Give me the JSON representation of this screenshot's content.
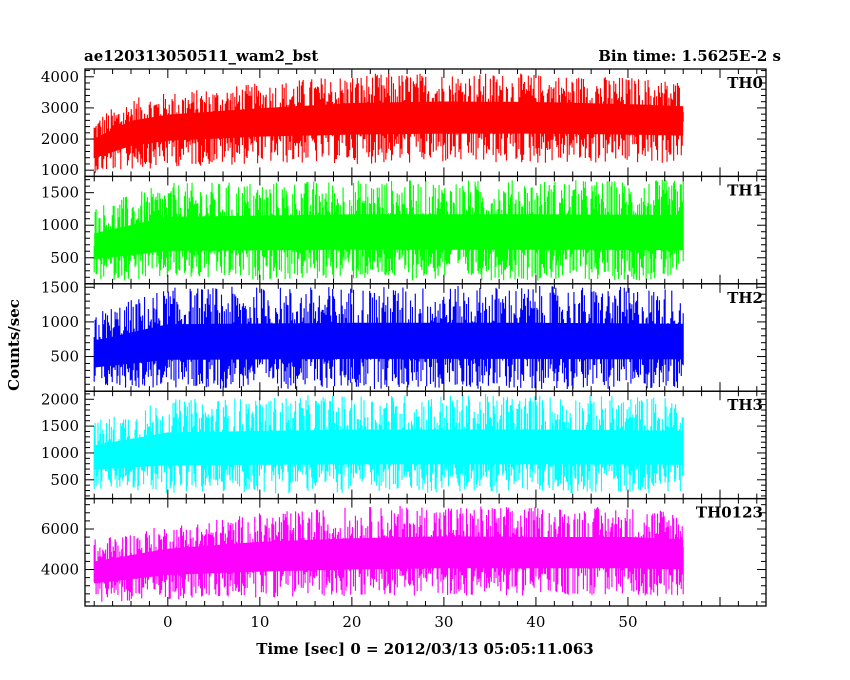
{
  "chart_data": {
    "type": "line",
    "title": "ae120313050511_wam2_bst",
    "subtitle": "Bin time: 1.5625E-2 s",
    "xlabel": "Time [sec] 0 = 2012/03/13 05:05:11.063",
    "ylabel": "Counts/sec",
    "xlim": [
      -9,
      65
    ],
    "x_ticks": [
      0,
      10,
      20,
      30,
      40,
      50
    ],
    "x_tick_labels": [
      "0",
      "10",
      "20",
      "30",
      "40",
      "50"
    ],
    "data_range": [
      -8,
      56
    ],
    "panels": [
      {
        "name": "TH0",
        "color": "#ff0000",
        "ylim": [
          800,
          4250
        ],
        "y_ticks": [
          1000,
          2000,
          3000,
          4000
        ],
        "y_tick_labels": [
          "1000",
          "2000",
          "3000",
          "4000"
        ],
        "envelope": [
          {
            "x": -8,
            "min": 900,
            "mean": 1650,
            "max": 2700
          },
          {
            "x": -4,
            "min": 1000,
            "mean": 2200,
            "max": 3300
          },
          {
            "x": 0,
            "min": 1100,
            "mean": 2400,
            "max": 3500
          },
          {
            "x": 10,
            "min": 1200,
            "mean": 2550,
            "max": 3800
          },
          {
            "x": 20,
            "min": 1200,
            "mean": 2650,
            "max": 4100
          },
          {
            "x": 30,
            "min": 1200,
            "mean": 2700,
            "max": 4150
          },
          {
            "x": 40,
            "min": 1200,
            "mean": 2700,
            "max": 4100
          },
          {
            "x": 50,
            "min": 1200,
            "mean": 2650,
            "max": 4000
          },
          {
            "x": 56,
            "min": 1200,
            "mean": 2600,
            "max": 3900
          }
        ]
      },
      {
        "name": "TH1",
        "color": "#00ff00",
        "ylim": [
          100,
          1750
        ],
        "y_ticks": [
          500,
          1000,
          1500
        ],
        "y_tick_labels": [
          "500",
          "1000",
          "1500"
        ],
        "envelope": [
          {
            "x": -8,
            "min": 150,
            "mean": 650,
            "max": 1300
          },
          {
            "x": 0,
            "min": 150,
            "mean": 850,
            "max": 1650
          },
          {
            "x": 20,
            "min": 150,
            "mean": 880,
            "max": 1700
          },
          {
            "x": 40,
            "min": 150,
            "mean": 880,
            "max": 1700
          },
          {
            "x": 56,
            "min": 150,
            "mean": 870,
            "max": 1700
          }
        ]
      },
      {
        "name": "TH2",
        "color": "#0000ff",
        "ylim": [
          0,
          1550
        ],
        "y_ticks": [
          500,
          1000,
          1500
        ],
        "y_tick_labels": [
          "500",
          "1000",
          "1500"
        ],
        "envelope": [
          {
            "x": -8,
            "min": 50,
            "mean": 500,
            "max": 1150
          },
          {
            "x": 0,
            "min": 30,
            "mean": 680,
            "max": 1500
          },
          {
            "x": 20,
            "min": 30,
            "mean": 700,
            "max": 1520
          },
          {
            "x": 40,
            "min": 30,
            "mean": 700,
            "max": 1520
          },
          {
            "x": 56,
            "min": 30,
            "mean": 690,
            "max": 1500
          }
        ]
      },
      {
        "name": "TH3",
        "color": "#00ffff",
        "ylim": [
          150,
          2150
        ],
        "y_ticks": [
          500,
          1000,
          1500,
          2000
        ],
        "y_tick_labels": [
          "500",
          "1000",
          "1500",
          "2000"
        ],
        "envelope": [
          {
            "x": -8,
            "min": 300,
            "mean": 900,
            "max": 1600
          },
          {
            "x": 0,
            "min": 250,
            "mean": 1050,
            "max": 2000
          },
          {
            "x": 20,
            "min": 250,
            "mean": 1080,
            "max": 2100
          },
          {
            "x": 40,
            "min": 250,
            "mean": 1080,
            "max": 2100
          },
          {
            "x": 56,
            "min": 250,
            "mean": 1070,
            "max": 2050
          }
        ]
      },
      {
        "name": "TH0123",
        "color": "#ff00ff",
        "ylim": [
          2200,
          7500
        ],
        "y_ticks": [
          4000,
          6000
        ],
        "y_tick_labels": [
          "4000",
          "6000"
        ],
        "envelope": [
          {
            "x": -8,
            "min": 2400,
            "mean": 3800,
            "max": 5500
          },
          {
            "x": 0,
            "min": 2500,
            "mean": 4400,
            "max": 6200
          },
          {
            "x": 10,
            "min": 2600,
            "mean": 4600,
            "max": 6800
          },
          {
            "x": 20,
            "min": 2700,
            "mean": 4700,
            "max": 7100
          },
          {
            "x": 30,
            "min": 2700,
            "mean": 4800,
            "max": 7200
          },
          {
            "x": 40,
            "min": 2700,
            "mean": 4800,
            "max": 7100
          },
          {
            "x": 50,
            "min": 2700,
            "mean": 4800,
            "max": 7100
          },
          {
            "x": 56,
            "min": 2700,
            "mean": 4700,
            "max": 7000
          }
        ]
      }
    ]
  }
}
